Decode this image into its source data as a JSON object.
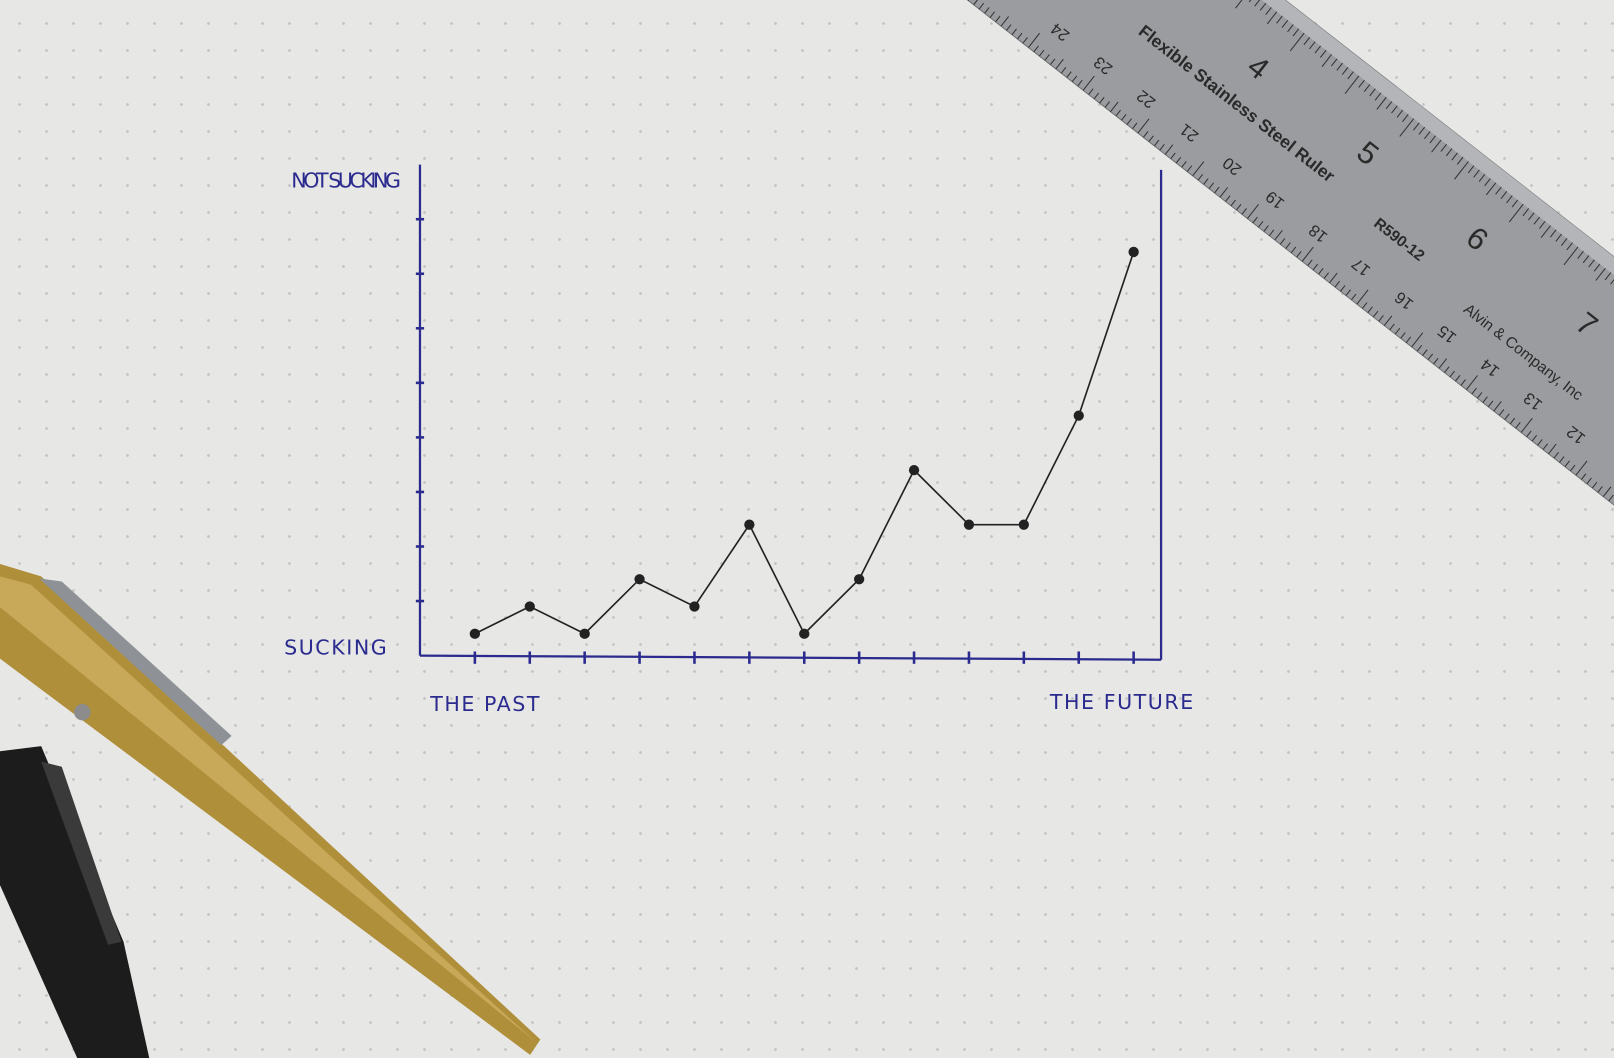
{
  "chart_data": {
    "type": "line",
    "y_top_label": "NOT SUCKING",
    "y_bottom_label": "SUCKING",
    "x_start_label": "THE PAST",
    "x_end_label": "THE FUTURE",
    "x": [
      1,
      2,
      3,
      4,
      5,
      6,
      7,
      8,
      9,
      10,
      11,
      12,
      13
    ],
    "values": [
      0.4,
      0.9,
      0.4,
      1.4,
      0.9,
      2.4,
      0.4,
      1.4,
      3.4,
      2.4,
      2.4,
      4.4,
      7.4
    ],
    "color": "#222222",
    "axis_color": "#2b2b8f",
    "xlim": [
      0,
      13.5
    ],
    "ylim": [
      0,
      9
    ],
    "xticks": [
      1,
      2,
      3,
      4,
      5,
      6,
      7,
      8,
      9,
      10,
      11,
      12,
      13
    ],
    "yticks": [
      1,
      2,
      3,
      4,
      5,
      6,
      7,
      8
    ]
  },
  "ruler": {
    "label": "Flexible Stainless Steel Ruler",
    "model": "R590-12",
    "maker": "Alvin & Company, Inc",
    "inch_marks": [
      "4",
      "5",
      "6",
      "7"
    ],
    "cm_marks": [
      "24",
      "23",
      "22",
      "21",
      "20",
      "19",
      "18",
      "17",
      "16",
      "15",
      "14",
      "13",
      "12"
    ]
  }
}
